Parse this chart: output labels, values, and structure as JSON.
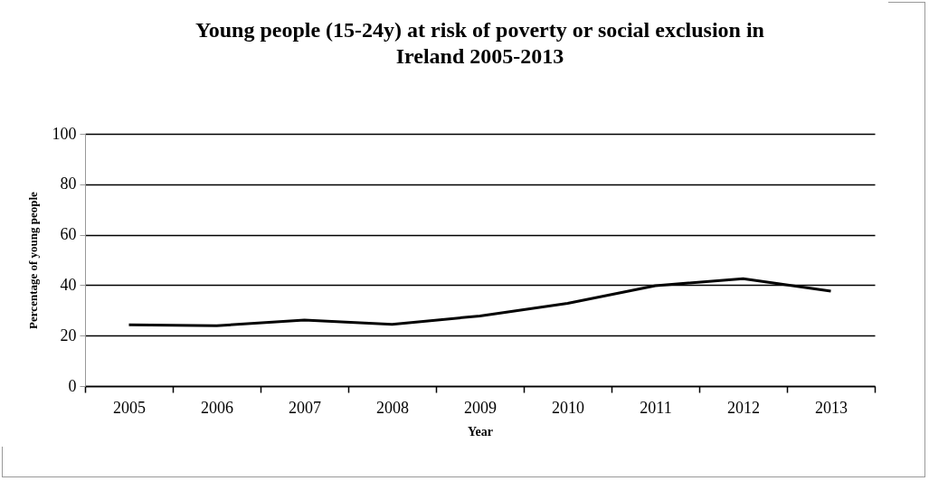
{
  "chart_data": {
    "type": "line",
    "title": "Young people (15-24y) at risk of poverty or social exclusion in Ireland 2005-2013",
    "xlabel": "Year",
    "ylabel": "Percentage of young people",
    "categories": [
      "2005",
      "2006",
      "2007",
      "2008",
      "2009",
      "2010",
      "2011",
      "2012",
      "2013"
    ],
    "series": [
      {
        "color": "#000000",
        "values": [
          24.3,
          23.9,
          26.2,
          24.5,
          27.8,
          32.8,
          39.8,
          42.6,
          37.6
        ]
      }
    ],
    "ylim": [
      0,
      100
    ],
    "yticks": [
      0,
      20,
      40,
      60,
      80,
      100
    ],
    "grid": "y",
    "marker": "none",
    "line_style": "solid"
  }
}
